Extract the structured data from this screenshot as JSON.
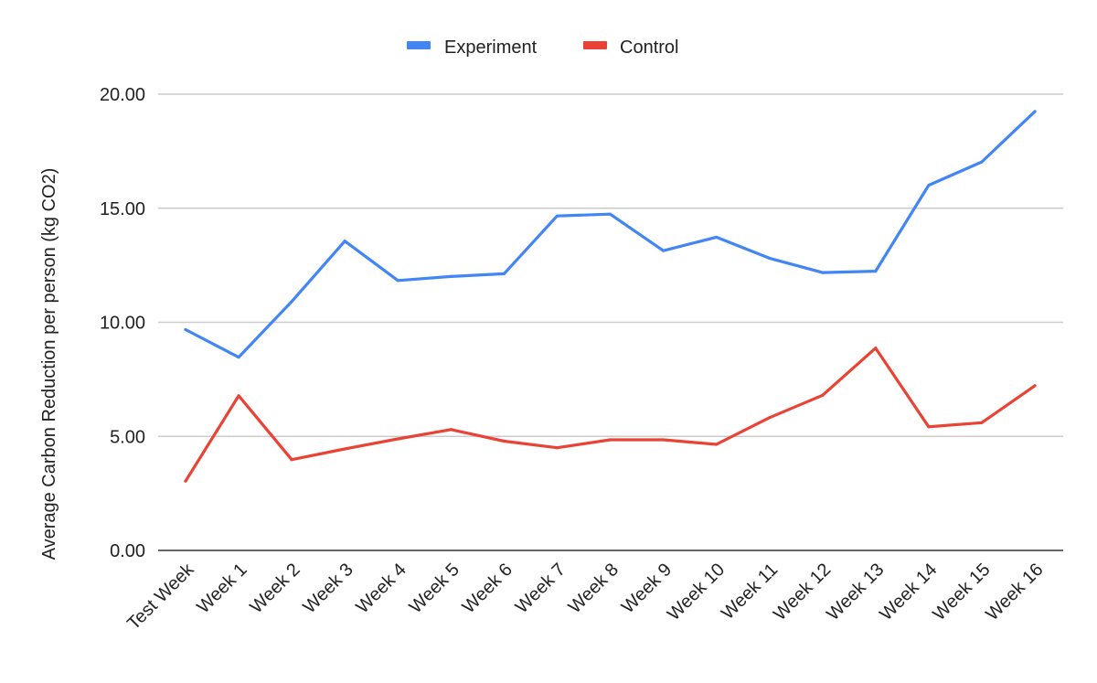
{
  "chart_data": {
    "type": "line",
    "title": "",
    "xlabel": "",
    "ylabel": "Average Carbon Reduction per person (kg CO2)",
    "categories": [
      "Test Week",
      "Week 1",
      "Week 2",
      "Week 3",
      "Week 4",
      "Week 5",
      "Week 6",
      "Week 7",
      "Week 8",
      "Week 9",
      "Week 10",
      "Week 11",
      "Week 12",
      "Week 13",
      "Week 14",
      "Week 15",
      "Week 16"
    ],
    "series": [
      {
        "name": "Experiment",
        "color": "#4285f4",
        "values": [
          9.68,
          8.47,
          10.91,
          13.56,
          11.83,
          12.01,
          12.13,
          14.66,
          14.74,
          13.14,
          13.73,
          12.81,
          12.18,
          12.24,
          16.01,
          17.03,
          19.24
        ]
      },
      {
        "name": "Control",
        "color": "#ea4335",
        "values": [
          3.04,
          6.78,
          3.98,
          4.45,
          4.89,
          5.3,
          4.79,
          4.5,
          4.85,
          4.85,
          4.65,
          5.82,
          6.8,
          8.87,
          5.42,
          5.6,
          7.22
        ]
      }
    ],
    "y_ticks": [
      "0.00",
      "5.00",
      "10.00",
      "15.00",
      "20.00"
    ],
    "y_tick_values": [
      0,
      5,
      10,
      15,
      20
    ],
    "ylim": [
      0,
      20
    ],
    "grid": true,
    "legend_position": "top-center"
  }
}
